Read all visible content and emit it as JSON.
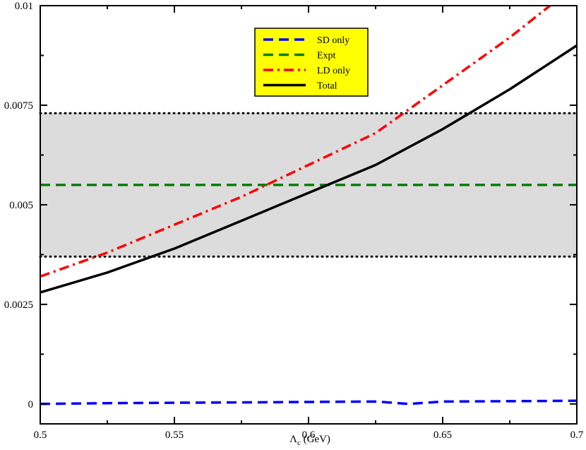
{
  "chart_data": {
    "type": "line",
    "title": "",
    "xlabel": "Λ",
    "xlabel_sub": "c",
    "xlabel_unit": " (GeV)",
    "ylabel": "",
    "xlim": [
      0.5,
      0.7
    ],
    "ylim": [
      -0.0005,
      0.01
    ],
    "x_ticks": [
      0.5,
      0.55,
      0.6,
      0.65,
      0.7
    ],
    "x_tick_labels": [
      "0.5",
      "0.55",
      "0.6",
      "0.65",
      "0.7"
    ],
    "y_ticks": [
      0,
      0.0025,
      0.005,
      0.0075,
      0.01
    ],
    "y_tick_labels": [
      "0",
      "0.0025",
      "0.005",
      "0.0075",
      "0.01"
    ],
    "grid": false,
    "legend_position": "top-center",
    "band": {
      "y_low": 0.0037,
      "y_high": 0.0073,
      "color": "#dcdcdc"
    },
    "series": [
      {
        "name": "SD only",
        "color": "#0000ff",
        "style": "dashed",
        "x": [
          0.5,
          0.525,
          0.55,
          0.575,
          0.6,
          0.625,
          0.6375,
          0.65,
          0.675,
          0.7
        ],
        "y": [
          0.0,
          2e-05,
          3e-05,
          4e-05,
          5e-05,
          6e-05,
          0.0,
          6e-05,
          7e-05,
          8e-05
        ]
      },
      {
        "name": "Expt",
        "color": "#008000",
        "style": "dashed",
        "x": [
          0.5,
          0.7
        ],
        "y": [
          0.0055,
          0.0055
        ]
      },
      {
        "name": "LD only",
        "color": "#ff0000",
        "style": "dashdot",
        "x": [
          0.5,
          0.525,
          0.55,
          0.575,
          0.6,
          0.625,
          0.65,
          0.675,
          0.69
        ],
        "y": [
          0.0032,
          0.0038,
          0.0045,
          0.0052,
          0.006,
          0.0068,
          0.008,
          0.0092,
          0.01
        ]
      },
      {
        "name": "Total",
        "color": "#000000",
        "style": "solid",
        "x": [
          0.5,
          0.525,
          0.55,
          0.575,
          0.6,
          0.625,
          0.65,
          0.675,
          0.7
        ],
        "y": [
          0.0028,
          0.0033,
          0.0039,
          0.0046,
          0.0053,
          0.006,
          0.0069,
          0.0079,
          0.009
        ]
      }
    ]
  }
}
